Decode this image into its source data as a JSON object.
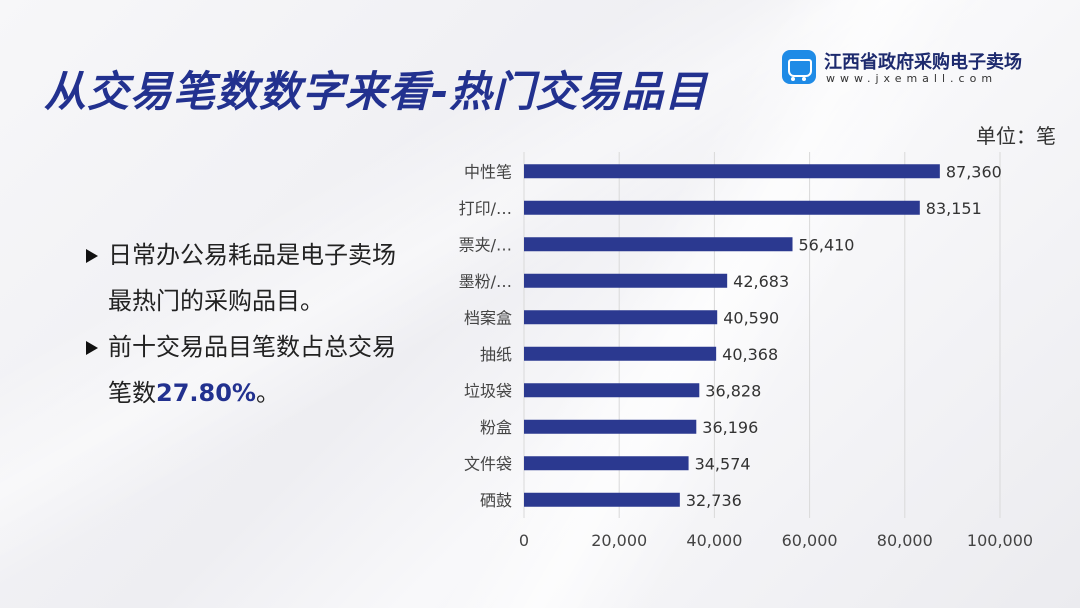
{
  "header": {
    "title": "从交易笔数数字来看-热门交易品目",
    "logo_name": "江西省政府采购电子卖场",
    "logo_url": "www.jxemall.com"
  },
  "unit_label": "单位：笔",
  "bullets": [
    {
      "text": "日常办公易耗品是电子卖场最热门的采购品目。",
      "prefix": "",
      "highlight": "",
      "suffix": ""
    },
    {
      "text": "",
      "prefix": "前十交易品目笔数占总交易笔数",
      "highlight": "27.80%",
      "suffix": "。"
    }
  ],
  "colors": {
    "bar": "#2b3990",
    "title": "#22318f",
    "grid": "#d9d9d9"
  },
  "chart_data": {
    "type": "bar",
    "orientation": "horizontal",
    "categories": [
      "中性笔",
      "打印/…",
      "票夹/…",
      "墨粉/…",
      "档案盒",
      "抽纸",
      "垃圾袋",
      "粉盒",
      "文件袋",
      "硒鼓"
    ],
    "values": [
      87360,
      83151,
      56410,
      42683,
      40590,
      40368,
      36828,
      36196,
      34574,
      32736
    ],
    "value_labels": [
      "87,360",
      "83,151",
      "56,410",
      "42,683",
      "40,590",
      "40,368",
      "36,828",
      "36,196",
      "34,574",
      "32,736"
    ],
    "xlim": [
      0,
      100000
    ],
    "x_ticks": [
      0,
      20000,
      40000,
      60000,
      80000,
      100000
    ],
    "x_tick_labels": [
      "0",
      "20,000",
      "40,000",
      "60,000",
      "80,000",
      "100,000"
    ],
    "grid": true,
    "legend": "none"
  }
}
